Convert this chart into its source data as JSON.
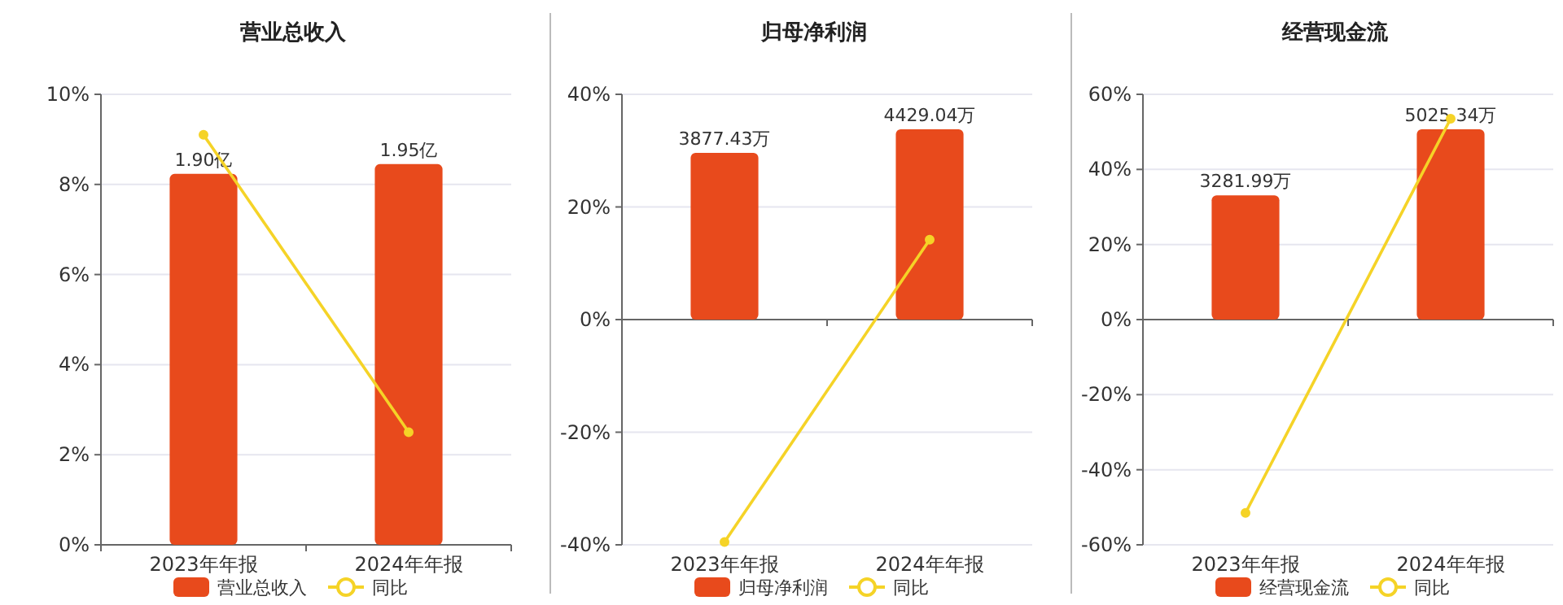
{
  "chart_data": [
    {
      "type": "bar",
      "title": "营业总收入",
      "categories": [
        "2023年年报",
        "2024年年报"
      ],
      "ylim": [
        0,
        10
      ],
      "yticks": [
        {
          "value": 0,
          "label": "0%"
        },
        {
          "value": 2,
          "label": "2%"
        },
        {
          "value": 4,
          "label": "4%"
        },
        {
          "value": 6,
          "label": "6%"
        },
        {
          "value": 8,
          "label": "8%"
        },
        {
          "value": 10,
          "label": "10%"
        }
      ],
      "grid": "y",
      "legend": "bottom",
      "series": [
        {
          "name": "营业总收入",
          "axis": "y2",
          "color": "#e84a1c",
          "values": [
            1.9,
            1.95
          ],
          "value_labels": [
            "1.90亿",
            "1.95亿"
          ]
        },
        {
          "name": "同比",
          "type": "line",
          "marker": "circle",
          "color": "#f5d327",
          "values": [
            9.1,
            2.5
          ]
        }
      ]
    },
    {
      "type": "bar",
      "title": "归母净利润",
      "categories": [
        "2023年年报",
        "2024年年报"
      ],
      "ylim": [
        -40,
        40
      ],
      "yticks": [
        {
          "value": -40,
          "label": "-40%"
        },
        {
          "value": -20,
          "label": "-20%"
        },
        {
          "value": 0,
          "label": "0%"
        },
        {
          "value": 20,
          "label": "20%"
        },
        {
          "value": 40,
          "label": "40%"
        }
      ],
      "grid": "y",
      "legend": "bottom",
      "series": [
        {
          "name": "归母净利润",
          "axis": "y2",
          "color": "#e84a1c",
          "values": [
            3877.43,
            4429.04
          ],
          "value_labels": [
            "3877.43万",
            "4429.04万"
          ]
        },
        {
          "name": "同比",
          "type": "line",
          "marker": "circle",
          "color": "#f5d327",
          "values": [
            -39.5,
            14.2
          ]
        }
      ]
    },
    {
      "type": "bar",
      "title": "经营现金流",
      "categories": [
        "2023年年报",
        "2024年年报"
      ],
      "ylim": [
        -60,
        60
      ],
      "yticks": [
        {
          "value": -60,
          "label": "-60%"
        },
        {
          "value": -40,
          "label": "-40%"
        },
        {
          "value": -20,
          "label": "-20%"
        },
        {
          "value": 0,
          "label": "0%"
        },
        {
          "value": 20,
          "label": "20%"
        },
        {
          "value": 40,
          "label": "40%"
        },
        {
          "value": 60,
          "label": "60%"
        }
      ],
      "grid": "y",
      "legend": "bottom",
      "series": [
        {
          "name": "经营现金流",
          "axis": "y2",
          "color": "#e84a1c",
          "values": [
            3281.99,
            5025.34
          ],
          "value_labels": [
            "3281.99万",
            "5025.34万"
          ]
        },
        {
          "name": "同比",
          "type": "line",
          "marker": "circle",
          "color": "#f5d327",
          "values": [
            -51.5,
            53.5
          ]
        }
      ]
    }
  ]
}
